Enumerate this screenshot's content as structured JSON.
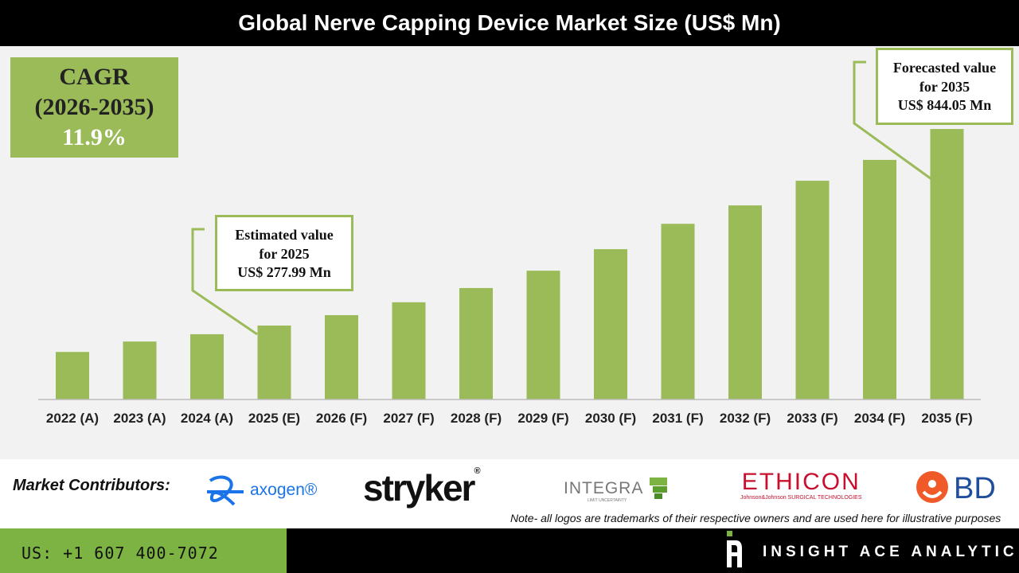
{
  "title": "Global Nerve Capping Device Market Size (US$ Mn)",
  "cagr": {
    "label": "CAGR",
    "period": "(2026-2035)",
    "value": "11.9%"
  },
  "callouts": {
    "estimated": {
      "line1": "Estimated value",
      "line2": "for 2025",
      "line3": "US$ 277.99 Mn"
    },
    "forecast": {
      "line1": "Forecasted value",
      "line2": "for 2035",
      "line3": "US$ 844.05 Mn"
    }
  },
  "chart_data": {
    "type": "bar",
    "title": "Global Nerve Capping Device Market Size (US$ Mn)",
    "categories": [
      "2022 (A)",
      "2023 (A)",
      "2024 (A)",
      "2025 (E)",
      "2026 (F)",
      "2027 (F)",
      "2028 (F)",
      "2029 (F)",
      "2030 (F)",
      "2031 (F)",
      "2032 (F)",
      "2033 (F)",
      "2034 (F)",
      "2035 (F)"
    ],
    "values": [
      202,
      232,
      253,
      277.99,
      308,
      345,
      386,
      436,
      498,
      571,
      624,
      695,
      755,
      844.05
    ],
    "ylim": [
      65,
      1078
    ],
    "grid": false,
    "bar_color": "#9bbb59"
  },
  "contributors": {
    "label": "Market Contributors:",
    "logos": [
      "axogen",
      "stryker",
      "INTEGRA",
      "ETHICON",
      "BD"
    ],
    "integra_tagline": "LIMIT UNCERTAINTY",
    "ethicon_tagline": "Johnson&Johnson SURGICAL TECHNOLOGIES",
    "note": "Note- all logos are trademarks of their respective owners and are used here for illustrative purposes"
  },
  "footer": {
    "phone": "US: +1 607 400-7072",
    "brand": "INSIGHT ACE ANALYTIC"
  },
  "colors": {
    "accent": "#9bbb59",
    "footer_green": "#7cb342",
    "axogen": "#1a73e8",
    "ethicon": "#c8102e",
    "bd_orange": "#f05a28",
    "bd_blue": "#1f4e9c"
  }
}
